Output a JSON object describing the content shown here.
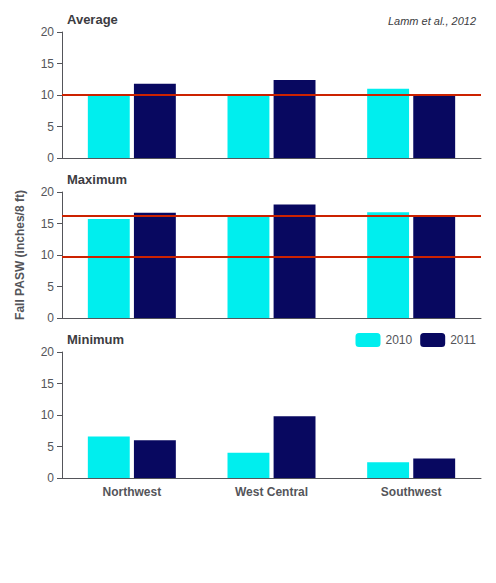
{
  "chart_data": [
    {
      "type": "bar",
      "title": "Average",
      "annotation": "Lamm et al., 2012",
      "categories": [
        "Northwest",
        "West Central",
        "Southwest"
      ],
      "series": [
        {
          "name": "2010",
          "color": "#00EEEE",
          "values": [
            10.0,
            10.0,
            11.0
          ]
        },
        {
          "name": "2011",
          "color": "#080860",
          "values": [
            11.8,
            12.4,
            10.0
          ]
        }
      ],
      "hlines": {
        "values": [
          10.0
        ],
        "color": "#CC2200"
      },
      "ylim": [
        0,
        20
      ],
      "yticks": [
        0,
        5,
        10,
        15,
        20
      ],
      "grid": false,
      "tick_labels": "y"
    },
    {
      "type": "bar",
      "title": "Maximum",
      "ylabel": "Fall PASW (inches/8 ft)",
      "categories": [
        "Northwest",
        "West Central",
        "Southwest"
      ],
      "series": [
        {
          "name": "2010",
          "color": "#00EEEE",
          "values": [
            15.7,
            16.2,
            16.8
          ]
        },
        {
          "name": "2011",
          "color": "#080860",
          "values": [
            16.7,
            18.0,
            16.2
          ]
        }
      ],
      "hlines": {
        "values": [
          9.8,
          16.2
        ],
        "color": "#CC2200"
      },
      "ylim": [
        0,
        20
      ],
      "yticks": [
        0,
        5,
        10,
        15,
        20
      ],
      "grid": false,
      "tick_labels": "y"
    },
    {
      "type": "bar",
      "title": "Minimum",
      "categories": [
        "Northwest",
        "West Central",
        "Southwest"
      ],
      "series": [
        {
          "name": "2010",
          "color": "#00EEEE",
          "values": [
            6.6,
            4.0,
            2.5
          ]
        },
        {
          "name": "2011",
          "color": "#080860",
          "values": [
            6.0,
            9.8,
            3.1
          ]
        }
      ],
      "ylim": [
        0,
        20
      ],
      "yticks": [
        0,
        5,
        10,
        15,
        20
      ],
      "grid": false,
      "legend": "upper right"
    }
  ]
}
